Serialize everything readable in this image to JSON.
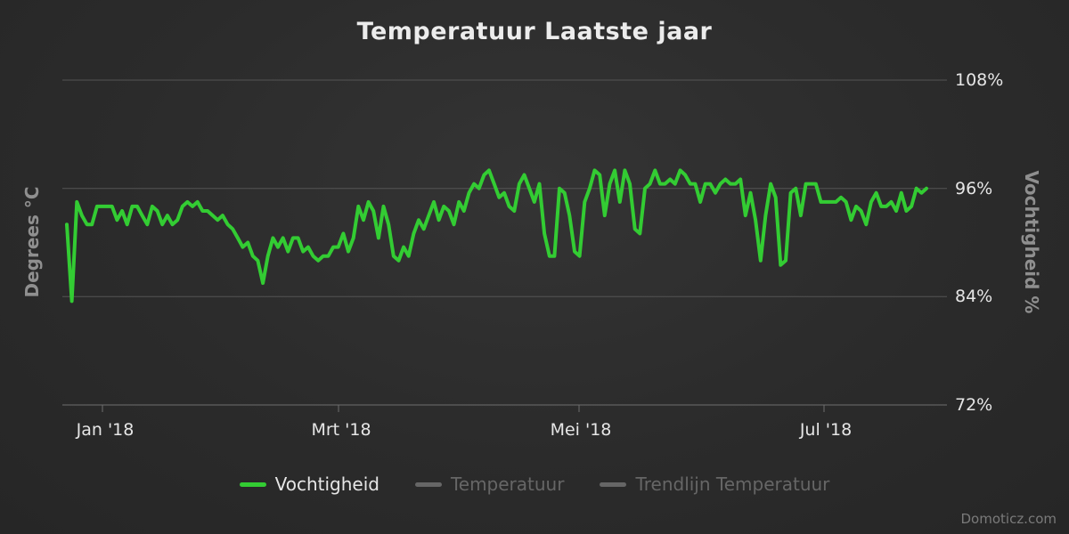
{
  "title": "Temperatuur Laatste jaar",
  "watermark": "Domoticz.com",
  "colors": {
    "background": "#2b2b2b",
    "grid": "#545454",
    "tick_text": "#e6e6e6",
    "axis_title_text": "#8f8f8f",
    "series_green": "#33cc33",
    "legend_disabled": "#666666"
  },
  "axes": {
    "left_title": "Degrees °C",
    "right_title": "Vochtigheid %"
  },
  "legend": {
    "items": [
      {
        "label": "Vochtigheid",
        "color": "#33cc33",
        "enabled": true
      },
      {
        "label": "Temperatuur",
        "color": "#666666",
        "enabled": false
      },
      {
        "label": "Trendlijn Temperatuur",
        "color": "#666666",
        "enabled": false
      }
    ]
  },
  "chart_data": {
    "type": "line",
    "title": "Temperatuur Laatste jaar",
    "x_axis": {
      "tick_labels": [
        "Jan '18",
        "Mrt '18",
        "Mei '18",
        "Jul '18"
      ]
    },
    "y_axis_left": {
      "label": "Degrees °C"
    },
    "y_axis_right": {
      "label": "Vochtigheid %",
      "unit": "%",
      "range": [
        72,
        108
      ],
      "tick_labels": [
        "108%",
        "96%",
        "84%",
        "72%"
      ],
      "tick_values": [
        108,
        96,
        84,
        72
      ]
    },
    "legend_position": "bottom",
    "grid": true,
    "series": [
      {
        "name": "Vochtigheid",
        "color": "#33cc33",
        "visible": true,
        "unit": "%",
        "values": [
          92,
          83.5,
          94.5,
          93,
          92,
          92,
          94,
          94,
          94,
          94,
          92.5,
          93.5,
          92,
          94,
          94,
          93,
          92,
          94,
          93.5,
          92,
          93,
          92,
          92.5,
          94,
          94.5,
          94,
          94.5,
          93.5,
          93.5,
          93,
          92.5,
          93,
          92,
          91.5,
          90.5,
          89.5,
          90,
          88.5,
          88,
          85.5,
          88.5,
          90.5,
          89.5,
          90.5,
          89,
          90.5,
          90.5,
          89,
          89.5,
          88.5,
          88,
          88.5,
          88.5,
          89.5,
          89.5,
          91,
          89,
          90.5,
          94,
          92.5,
          94.5,
          93.5,
          90.5,
          94,
          92,
          88.5,
          88,
          89.5,
          88.5,
          91,
          92.5,
          91.5,
          93,
          94.5,
          92.5,
          94,
          93.5,
          92,
          94.5,
          93.5,
          95.5,
          96.5,
          96,
          97.5,
          98,
          96.5,
          95,
          95.5,
          94,
          93.5,
          96.5,
          97.5,
          96,
          94.5,
          96.5,
          91,
          88.5,
          88.5,
          96,
          95.5,
          93,
          89,
          88.5,
          94.5,
          96,
          98,
          97.5,
          93,
          96.5,
          98,
          94.5,
          98,
          96.5,
          91.5,
          91,
          96,
          96.5,
          98,
          96.5,
          96.5,
          97,
          96.5,
          98,
          97.5,
          96.5,
          96.5,
          94.5,
          96.5,
          96.5,
          95.5,
          96.5,
          97,
          96.5,
          96.5,
          97,
          93,
          95.5,
          92.5,
          88,
          93,
          96.5,
          95,
          87.5,
          88,
          95.5,
          96,
          93,
          96.5,
          96.5,
          96.5,
          94.5,
          94.5,
          94.5,
          94.5,
          95,
          94.5,
          92.5,
          94,
          93.5,
          92,
          94.5,
          95.5,
          94,
          94,
          94.5,
          93.5,
          95.5,
          93.5,
          94,
          96,
          95.5,
          96
        ]
      },
      {
        "name": "Temperatuur",
        "color": "#666666",
        "visible": false,
        "values": []
      },
      {
        "name": "Trendlijn Temperatuur",
        "color": "#666666",
        "visible": false,
        "values": []
      }
    ]
  }
}
